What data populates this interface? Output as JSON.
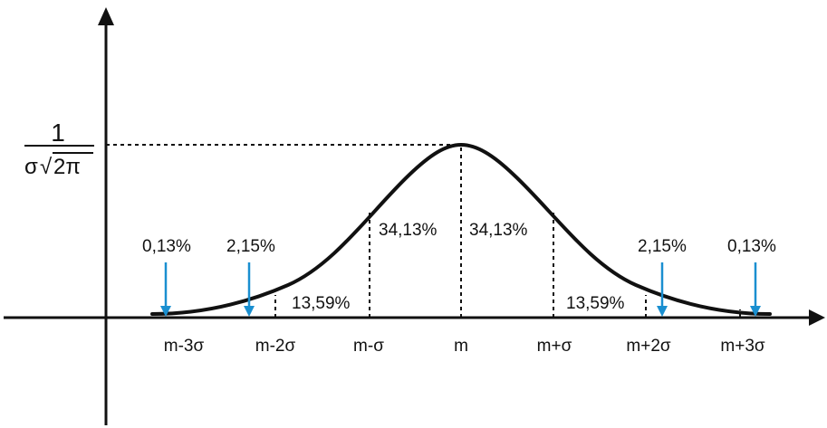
{
  "diagram": {
    "peak_label": {
      "numerator": "1",
      "denominator_prefix": "σ",
      "radical_sign": "√",
      "radicand": "2π"
    },
    "x_axis_labels": [
      "m-3σ",
      "m-2σ",
      "m-σ",
      "m",
      "m+σ",
      "m+2σ",
      "m+3σ"
    ],
    "region_labels": {
      "left_center": "34,13%",
      "right_center": "34,13%",
      "left_middle": "13,59%",
      "right_middle": "13,59%",
      "left_tail": "2,15%",
      "right_tail": "2,15%",
      "left_far_tail": "0,13%",
      "right_far_tail": "0,13%"
    },
    "colors": {
      "curve": "#111111",
      "axis": "#111111",
      "arrow": "#1a8fd0",
      "dashed": "#111111"
    }
  }
}
